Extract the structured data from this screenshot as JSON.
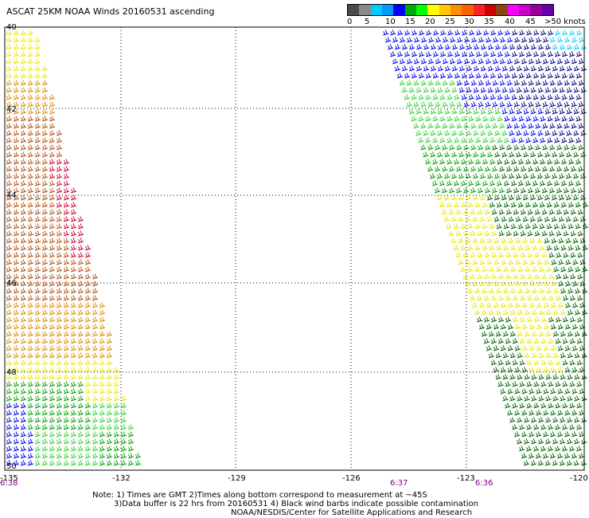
{
  "title": "ASCAT 25KM NOAA Winds 20160531 ascending",
  "legend": {
    "colors": [
      "#4a4a4a",
      "#8a8a8a",
      "#00ccff",
      "#0099ff",
      "#0000ff",
      "#00aa00",
      "#00ff00",
      "#ffff00",
      "#ffc800",
      "#ff8c00",
      "#ff6000",
      "#ff2020",
      "#cc0000",
      "#8b4513",
      "#ff00ff",
      "#cc00cc",
      "#990099",
      "#6600aa"
    ],
    "labels": [
      "0",
      "5",
      "10",
      "15",
      "20",
      "25",
      "30",
      "35",
      "40",
      "45",
      ">50 knots"
    ]
  },
  "axes": {
    "lat_labels": [
      "40",
      "42",
      "44",
      "46",
      "48",
      "50"
    ],
    "lon_labels": [
      "-135",
      "-132",
      "-129",
      "-126",
      "-123",
      "-120"
    ]
  },
  "times": [
    "6:38",
    "6:37",
    "6:36"
  ],
  "notes": {
    "line1": "Note: 1) Times are GMT 2)Times along bottom correspond to measurement at ~45S",
    "line2": "3)Data buffer is 22 hrs from 20160531 4) Black wind barbs indicate possible contamination",
    "line3": "NOAA/NESDIS/Center for Satellite Applications and Research"
  },
  "wind_colors": {
    "yellow": "#e8e800",
    "orange": "#d98c00",
    "brown": "#b05010",
    "red": "#cc0033",
    "green": "#00a000",
    "light_green": "#30d030",
    "dark_green": "#006400",
    "blue": "#0000ee",
    "dark_blue": "#000080",
    "cyan": "#00ccff"
  }
}
